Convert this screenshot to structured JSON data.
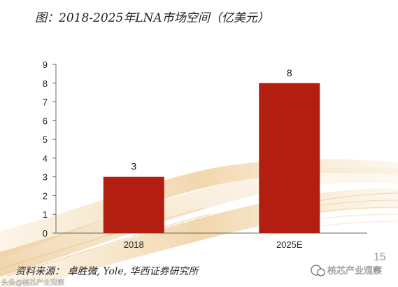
{
  "chart_data": {
    "type": "bar",
    "title": "图：2018-2025年LNA市场空间（亿美元）",
    "categories": [
      "2018",
      "2025E"
    ],
    "values": [
      3,
      8
    ],
    "data_labels": [
      "3",
      "8"
    ],
    "xlabel": "",
    "ylabel": "",
    "ylim": [
      0,
      9
    ],
    "yticks": [
      "0",
      "1",
      "2",
      "3",
      "4",
      "5",
      "6",
      "7",
      "8",
      "9"
    ],
    "grid": false,
    "legend": "none",
    "bar_color": "#B21E10"
  },
  "footer": {
    "source": "资料来源： 卓胜微, Yole, 华西证券研究所",
    "page_number": "15"
  },
  "watermarks": {
    "right": "核芯产业观察",
    "left": "头条@核芯产业观察"
  }
}
